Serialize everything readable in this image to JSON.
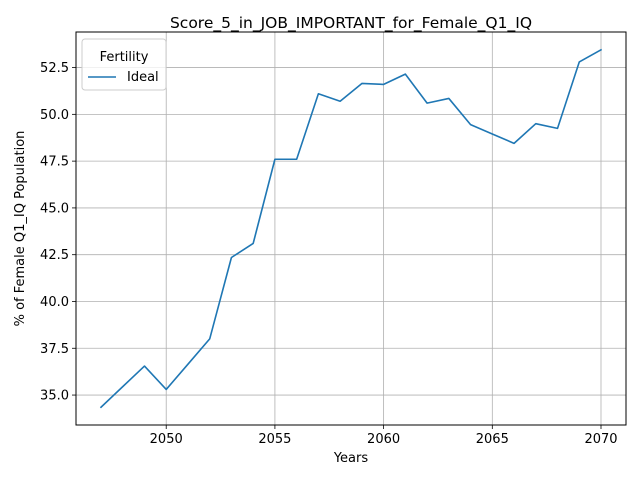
{
  "chart_data": {
    "type": "line",
    "title": "Score_5_in_JOB_IMPORTANT_for_Female_Q1_IQ",
    "xlabel": "Years",
    "ylabel": "% of Female Q1_IQ Population",
    "xlim": [
      2045.85,
      2071.15
    ],
    "ylim": [
      33.4,
      54.4
    ],
    "xticks": [
      2050,
      2055,
      2060,
      2065,
      2070
    ],
    "yticks": [
      35.0,
      37.5,
      40.0,
      42.5,
      45.0,
      47.5,
      50.0,
      52.5
    ],
    "xtick_labels": [
      "2050",
      "2055",
      "2060",
      "2065",
      "2070"
    ],
    "ytick_labels": [
      "35.0",
      "37.5",
      "40.0",
      "42.5",
      "45.0",
      "47.5",
      "50.0",
      "52.5"
    ],
    "grid": true,
    "legend": {
      "title": "Fertility",
      "position": "top-left"
    },
    "series": [
      {
        "name": "Ideal",
        "color": "#1f77b4",
        "x": [
          2047,
          2048,
          2049,
          2050,
          2051,
          2052,
          2053,
          2054,
          2055,
          2056,
          2057,
          2058,
          2059,
          2060,
          2061,
          2062,
          2063,
          2064,
          2065,
          2066,
          2067,
          2068,
          2069,
          2070
        ],
        "y": [
          34.35,
          35.45,
          36.55,
          35.3,
          36.65,
          38.0,
          42.35,
          43.1,
          47.6,
          47.6,
          51.1,
          50.7,
          51.65,
          51.6,
          52.15,
          50.6,
          50.85,
          49.45,
          48.95,
          48.45,
          49.5,
          49.25,
          52.8,
          53.45
        ]
      }
    ]
  }
}
